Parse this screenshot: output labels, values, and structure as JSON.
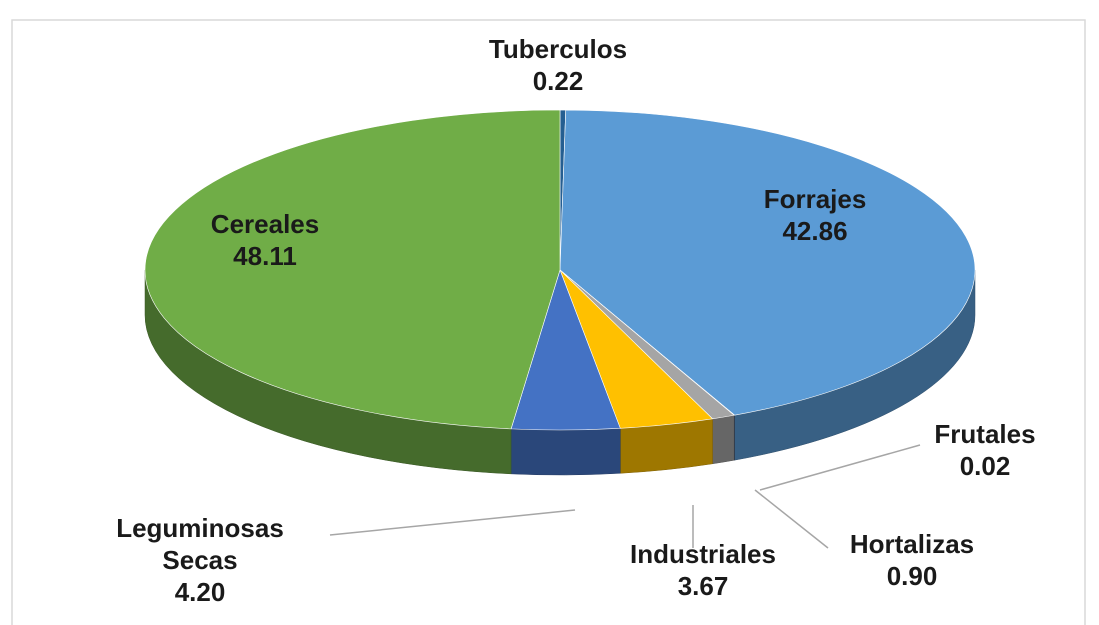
{
  "chart_data": {
    "type": "pie",
    "categories": [
      "Tuberculos",
      "Forrajes",
      "Frutales",
      "Hortalizas",
      "Industriales",
      "Leguminosas Secas",
      "Cereales"
    ],
    "values": [
      0.22,
      42.86,
      0.02,
      0.9,
      3.67,
      4.2,
      48.11
    ],
    "value_labels": [
      "0.22",
      "42.86",
      "0.02",
      "0.90",
      "3.67",
      "4.20",
      "48.11"
    ],
    "colors": [
      "#255e91",
      "#5b9bd5",
      "#264478",
      "#a5a5a5",
      "#ffc000",
      "#4472c4",
      "#70ad47"
    ]
  }
}
